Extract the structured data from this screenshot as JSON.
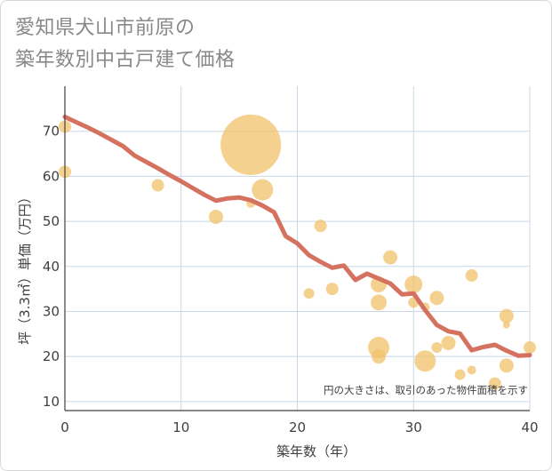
{
  "title_line1": "愛知県犬山市前原の",
  "title_line2": "築年数別中古戸建て価格",
  "colors": {
    "bubble": "#f2c26b",
    "line": "#d4725f",
    "grid": "#c8d8e6",
    "axis": "#404040"
  },
  "chart_data": {
    "type": "scatter",
    "xlabel": "築年数（年）",
    "ylabel": "坪（3.3㎡）単価（万円）",
    "xlim": [
      0,
      40
    ],
    "ylim": [
      8,
      80
    ],
    "xticks": [
      0,
      10,
      20,
      30,
      40
    ],
    "yticks": [
      10,
      20,
      30,
      40,
      50,
      60,
      70
    ],
    "note": "円の大きさは、取引のあった物件面積を示す",
    "bubbles": [
      {
        "x": 0,
        "y": 71,
        "r": 7
      },
      {
        "x": 0,
        "y": 61,
        "r": 7
      },
      {
        "x": 8,
        "y": 58,
        "r": 7
      },
      {
        "x": 13,
        "y": 51,
        "r": 8
      },
      {
        "x": 16,
        "y": 67,
        "r": 34
      },
      {
        "x": 16,
        "y": 54,
        "r": 5
      },
      {
        "x": 17,
        "y": 57,
        "r": 12
      },
      {
        "x": 21,
        "y": 34,
        "r": 6
      },
      {
        "x": 22,
        "y": 49,
        "r": 7
      },
      {
        "x": 23,
        "y": 35,
        "r": 7
      },
      {
        "x": 27,
        "y": 36,
        "r": 9
      },
      {
        "x": 27,
        "y": 32,
        "r": 9
      },
      {
        "x": 27,
        "y": 22,
        "r": 12
      },
      {
        "x": 27,
        "y": 20,
        "r": 8
      },
      {
        "x": 28,
        "y": 42,
        "r": 8
      },
      {
        "x": 30,
        "y": 36,
        "r": 10
      },
      {
        "x": 30,
        "y": 32,
        "r": 6
      },
      {
        "x": 31,
        "y": 31,
        "r": 5
      },
      {
        "x": 31,
        "y": 19,
        "r": 12
      },
      {
        "x": 32,
        "y": 33,
        "r": 8
      },
      {
        "x": 32,
        "y": 22,
        "r": 6
      },
      {
        "x": 33,
        "y": 23,
        "r": 8
      },
      {
        "x": 34,
        "y": 16,
        "r": 6
      },
      {
        "x": 35,
        "y": 38,
        "r": 7
      },
      {
        "x": 35,
        "y": 17,
        "r": 5
      },
      {
        "x": 37,
        "y": 14,
        "r": 7
      },
      {
        "x": 38,
        "y": 29,
        "r": 8
      },
      {
        "x": 38,
        "y": 27,
        "r": 4
      },
      {
        "x": 38,
        "y": 18,
        "r": 8
      },
      {
        "x": 40,
        "y": 22,
        "r": 7
      }
    ],
    "trend": {
      "x": [
        0,
        1,
        2,
        3,
        4,
        5,
        6,
        7,
        8,
        9,
        10,
        11,
        12,
        13,
        14,
        15,
        16,
        17,
        18,
        19,
        20,
        21,
        22,
        23,
        24,
        25,
        26,
        27,
        28,
        29,
        30,
        31,
        32,
        33,
        34,
        35,
        36,
        37,
        38,
        39,
        40
      ],
      "y": [
        73.2,
        72.0,
        70.8,
        69.5,
        68.1,
        66.7,
        64.6,
        63.2,
        61.8,
        60.3,
        58.9,
        57.4,
        55.9,
        54.6,
        55.1,
        55.3,
        54.7,
        53.5,
        52.0,
        46.7,
        45.1,
        42.5,
        41.0,
        39.7,
        40.2,
        37.0,
        38.4,
        37.3,
        36.2,
        33.8,
        34.0,
        30.3,
        27.0,
        25.6,
        25.1,
        21.4,
        22.1,
        22.6,
        21.3,
        20.2,
        20.3
      ]
    }
  }
}
